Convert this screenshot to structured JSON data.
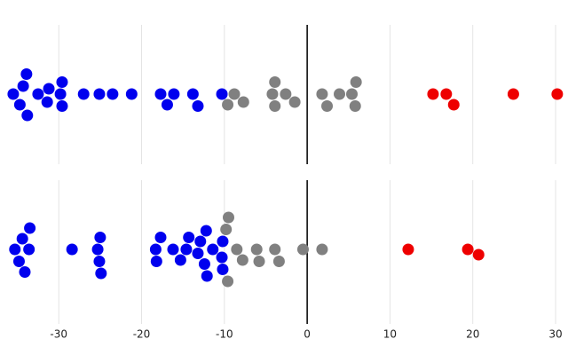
{
  "chart_data": {
    "type": "beeswarm",
    "xlim": [
      -37.1,
      31.5
    ],
    "xticks": [
      -30,
      -20,
      -10,
      0,
      10,
      20,
      30
    ],
    "grid": true,
    "panels": [
      {
        "series": [
          {
            "color": "#0000ee",
            "values": [
              -35.5,
              -34.7,
              -33.9,
              -33.8,
              -34.3,
              -32.5,
              -31.4,
              -31.2,
              -29.8,
              -29.6,
              -29.6,
              -27.0,
              -25.1,
              -23.5,
              -21.2,
              -17.7,
              -16.9,
              -16.1,
              -13.8,
              -13.2,
              -10.3
            ]
          },
          {
            "color": "#808080",
            "values": [
              -9.6,
              -8.8,
              -7.7,
              -4.2,
              -3.9,
              -3.9,
              -2.6,
              -1.5,
              1.8,
              2.4,
              3.9,
              5.4,
              5.8,
              5.9
            ]
          },
          {
            "color": "#ee0000",
            "values": [
              15.2,
              16.8,
              17.7,
              24.9,
              30.2
            ]
          }
        ]
      },
      {
        "series": [
          {
            "color": "#0000ee",
            "values": [
              -35.3,
              -34.8,
              -34.4,
              -34.1,
              -33.6,
              -33.5,
              -28.4,
              -25.3,
              -25.1,
              -25.0,
              -24.9,
              -18.3,
              -18.2,
              -17.7,
              -16.2,
              -15.3,
              -14.6,
              -14.3,
              -13.2,
              -12.9,
              -12.4,
              -12.2,
              -12.1,
              -11.4,
              -10.3,
              -10.2,
              -10.2
            ]
          },
          {
            "color": "#808080",
            "values": [
              -9.8,
              -9.6,
              -9.5,
              -8.5,
              -7.8,
              -6.1,
              -5.8,
              -3.9,
              -3.4,
              -0.5,
              1.8
            ]
          },
          {
            "color": "#ee0000",
            "values": [
              12.2,
              19.4,
              20.7
            ]
          }
        ]
      }
    ]
  }
}
